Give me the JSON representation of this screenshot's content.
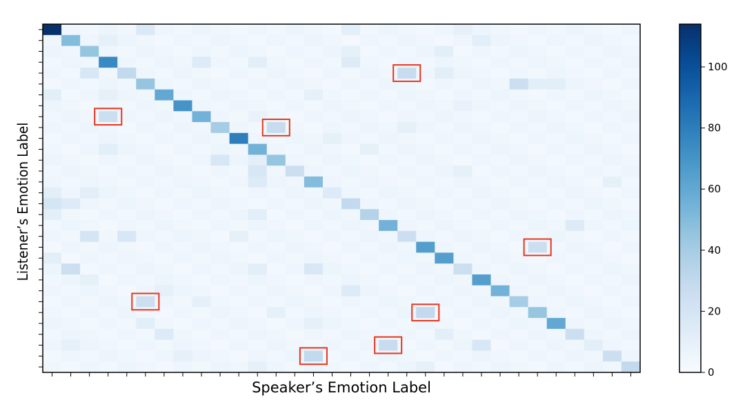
{
  "chart_data": {
    "type": "heatmap",
    "title": "",
    "xlabel": "Speaker’s Emotion Label",
    "ylabel": "Listener’s Emotion Label",
    "n_classes": 32,
    "diagonal": [
      114,
      50,
      45,
      75,
      30,
      45,
      60,
      70,
      55,
      40,
      80,
      55,
      45,
      25,
      50,
      15,
      30,
      35,
      55,
      25,
      65,
      65,
      25,
      65,
      55,
      40,
      45,
      60,
      25,
      12,
      25,
      30
    ],
    "background_value": 3,
    "off_diagonal": [
      {
        "row": 0,
        "col": 5,
        "value": 16
      },
      {
        "row": 0,
        "col": 16,
        "value": 12
      },
      {
        "row": 0,
        "col": 22,
        "value": 10
      },
      {
        "row": 1,
        "col": 3,
        "value": 10
      },
      {
        "row": 1,
        "col": 23,
        "value": 12
      },
      {
        "row": 2,
        "col": 16,
        "value": 10
      },
      {
        "row": 2,
        "col": 21,
        "value": 12
      },
      {
        "row": 3,
        "col": 8,
        "value": 15
      },
      {
        "row": 3,
        "col": 11,
        "value": 12
      },
      {
        "row": 3,
        "col": 16,
        "value": 14
      },
      {
        "row": 4,
        "col": 2,
        "value": 18
      },
      {
        "row": 4,
        "col": 19,
        "value": 28
      },
      {
        "row": 4,
        "col": 21,
        "value": 12
      },
      {
        "row": 5,
        "col": 25,
        "value": 25
      },
      {
        "row": 5,
        "col": 26,
        "value": 12
      },
      {
        "row": 5,
        "col": 27,
        "value": 12
      },
      {
        "row": 6,
        "col": 0,
        "value": 12
      },
      {
        "row": 6,
        "col": 3,
        "value": 10
      },
      {
        "row": 6,
        "col": 14,
        "value": 10
      },
      {
        "row": 7,
        "col": 22,
        "value": 8
      },
      {
        "row": 8,
        "col": 3,
        "value": 25
      },
      {
        "row": 8,
        "col": 11,
        "value": 8
      },
      {
        "row": 9,
        "col": 12,
        "value": 28
      },
      {
        "row": 9,
        "col": 19,
        "value": 10
      },
      {
        "row": 10,
        "col": 15,
        "value": 10
      },
      {
        "row": 11,
        "col": 3,
        "value": 12
      },
      {
        "row": 11,
        "col": 17,
        "value": 10
      },
      {
        "row": 12,
        "col": 9,
        "value": 18
      },
      {
        "row": 12,
        "col": 11,
        "value": 12
      },
      {
        "row": 13,
        "col": 11,
        "value": 18
      },
      {
        "row": 13,
        "col": 22,
        "value": 10
      },
      {
        "row": 14,
        "col": 11,
        "value": 15
      },
      {
        "row": 14,
        "col": 30,
        "value": 10
      },
      {
        "row": 15,
        "col": 0,
        "value": 12
      },
      {
        "row": 15,
        "col": 2,
        "value": 12
      },
      {
        "row": 16,
        "col": 0,
        "value": 20
      },
      {
        "row": 16,
        "col": 1,
        "value": 15
      },
      {
        "row": 17,
        "col": 0,
        "value": 12
      },
      {
        "row": 17,
        "col": 11,
        "value": 12
      },
      {
        "row": 18,
        "col": 28,
        "value": 14
      },
      {
        "row": 19,
        "col": 2,
        "value": 20
      },
      {
        "row": 19,
        "col": 4,
        "value": 18
      },
      {
        "row": 19,
        "col": 10,
        "value": 10
      },
      {
        "row": 20,
        "col": 26,
        "value": 25
      },
      {
        "row": 21,
        "col": 0,
        "value": 12
      },
      {
        "row": 22,
        "col": 1,
        "value": 25
      },
      {
        "row": 22,
        "col": 11,
        "value": 12
      },
      {
        "row": 22,
        "col": 14,
        "value": 18
      },
      {
        "row": 23,
        "col": 2,
        "value": 10
      },
      {
        "row": 24,
        "col": 16,
        "value": 15
      },
      {
        "row": 24,
        "col": 6,
        "value": 10
      },
      {
        "row": 25,
        "col": 5,
        "value": 25
      },
      {
        "row": 25,
        "col": 8,
        "value": 10
      },
      {
        "row": 26,
        "col": 20,
        "value": 30
      },
      {
        "row": 26,
        "col": 12,
        "value": 10
      },
      {
        "row": 27,
        "col": 5,
        "value": 12
      },
      {
        "row": 27,
        "col": 14,
        "value": 10
      },
      {
        "row": 28,
        "col": 6,
        "value": 15
      },
      {
        "row": 28,
        "col": 21,
        "value": 12
      },
      {
        "row": 29,
        "col": 18,
        "value": 28
      },
      {
        "row": 29,
        "col": 23,
        "value": 18
      },
      {
        "row": 29,
        "col": 1,
        "value": 10
      },
      {
        "row": 30,
        "col": 14,
        "value": 30
      },
      {
        "row": 30,
        "col": 7,
        "value": 10
      },
      {
        "row": 31,
        "col": 11,
        "value": 10
      },
      {
        "row": 31,
        "col": 20,
        "value": 10
      }
    ],
    "highlighted_cells": [
      {
        "row": 4,
        "col": 19
      },
      {
        "row": 8,
        "col": 3
      },
      {
        "row": 9,
        "col": 12
      },
      {
        "row": 20,
        "col": 26
      },
      {
        "row": 25,
        "col": 5
      },
      {
        "row": 26,
        "col": 20
      },
      {
        "row": 29,
        "col": 18
      },
      {
        "row": 30,
        "col": 14
      }
    ],
    "colorbar": {
      "range": [
        0,
        114
      ],
      "ticks": [
        0,
        20,
        40,
        60,
        80,
        100
      ],
      "colormap": "Blues"
    },
    "highlight_color": "#e8341c"
  }
}
